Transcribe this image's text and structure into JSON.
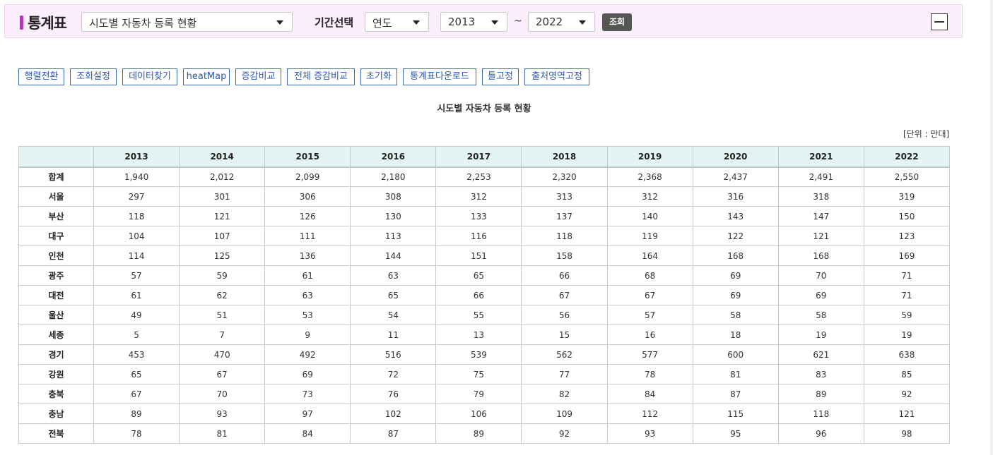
{
  "header": {
    "title": "통계표",
    "table_select": "시도별 자동차 등록 현황",
    "period_label": "기간선택",
    "period_type": "연도",
    "start_year": "2013",
    "tilde": "~",
    "end_year": "2022",
    "search_label": "조회"
  },
  "toolbar": {
    "buttons": [
      "행렬전환",
      "조회설정",
      "데이터찾기",
      "heatMap",
      "증감비교",
      "전체 증감비교",
      "초기화",
      "통계표다운로드",
      "틀고정",
      "출처영역고정"
    ]
  },
  "table": {
    "caption": "시도별 자동차 등록 현황",
    "unit": "[단위 : 만대]",
    "columns": [
      "2013",
      "2014",
      "2015",
      "2016",
      "2017",
      "2018",
      "2019",
      "2020",
      "2021",
      "2022"
    ],
    "rows": [
      {
        "label": "합계",
        "values": [
          "1,940",
          "2,012",
          "2,099",
          "2,180",
          "2,253",
          "2,320",
          "2,368",
          "2,437",
          "2,491",
          "2,550"
        ]
      },
      {
        "label": "서울",
        "values": [
          "297",
          "301",
          "306",
          "308",
          "312",
          "313",
          "312",
          "316",
          "318",
          "319"
        ]
      },
      {
        "label": "부산",
        "values": [
          "118",
          "121",
          "126",
          "130",
          "133",
          "137",
          "140",
          "143",
          "147",
          "150"
        ]
      },
      {
        "label": "대구",
        "values": [
          "104",
          "107",
          "111",
          "113",
          "116",
          "118",
          "119",
          "122",
          "121",
          "123"
        ]
      },
      {
        "label": "인천",
        "values": [
          "114",
          "125",
          "136",
          "144",
          "151",
          "158",
          "164",
          "168",
          "168",
          "169"
        ]
      },
      {
        "label": "광주",
        "values": [
          "57",
          "59",
          "61",
          "63",
          "65",
          "66",
          "68",
          "69",
          "70",
          "71"
        ]
      },
      {
        "label": "대전",
        "values": [
          "61",
          "62",
          "63",
          "65",
          "66",
          "67",
          "67",
          "69",
          "69",
          "71"
        ]
      },
      {
        "label": "울산",
        "values": [
          "49",
          "51",
          "53",
          "54",
          "55",
          "56",
          "57",
          "58",
          "58",
          "59"
        ]
      },
      {
        "label": "세종",
        "values": [
          "5",
          "7",
          "9",
          "11",
          "13",
          "15",
          "16",
          "18",
          "19",
          "19"
        ]
      },
      {
        "label": "경기",
        "values": [
          "453",
          "470",
          "492",
          "516",
          "539",
          "562",
          "577",
          "600",
          "621",
          "638"
        ]
      },
      {
        "label": "강원",
        "values": [
          "65",
          "67",
          "69",
          "72",
          "75",
          "77",
          "78",
          "81",
          "83",
          "85"
        ]
      },
      {
        "label": "충북",
        "values": [
          "67",
          "70",
          "73",
          "76",
          "79",
          "82",
          "84",
          "87",
          "89",
          "92"
        ]
      },
      {
        "label": "충남",
        "values": [
          "89",
          "93",
          "97",
          "102",
          "106",
          "109",
          "112",
          "115",
          "118",
          "121"
        ]
      },
      {
        "label": "전북",
        "values": [
          "78",
          "81",
          "84",
          "87",
          "89",
          "92",
          "93",
          "95",
          "96",
          "98"
        ]
      }
    ]
  }
}
